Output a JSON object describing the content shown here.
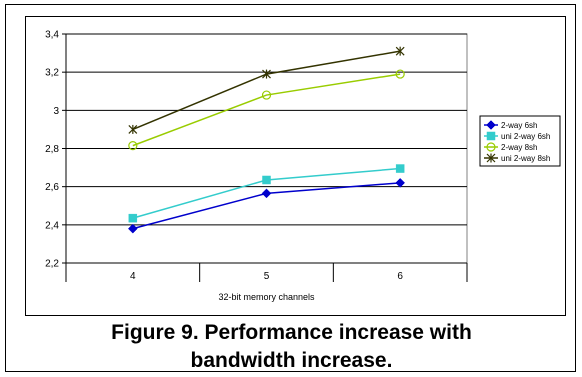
{
  "chart_data": {
    "type": "line",
    "categories": [
      "4",
      "5",
      "6"
    ],
    "xlabel": "32-bit memory channels",
    "ylabel": "",
    "ylim": [
      2.2,
      3.4
    ],
    "yticks": [
      2.2,
      2.4,
      2.6,
      2.8,
      3.0,
      3.2,
      3.4
    ],
    "ytick_labels": [
      "2,2",
      "2,4",
      "2,6",
      "2,8",
      "3",
      "3,2",
      "3,4"
    ],
    "grid": "horizontal",
    "legend_position": "right",
    "series": [
      {
        "name": "2-way 6sh",
        "values": [
          2.38,
          2.565,
          2.62
        ],
        "color": "#0000cc",
        "marker": "diamond"
      },
      {
        "name": "uni 2-way 6sh",
        "values": [
          2.435,
          2.635,
          2.695
        ],
        "color": "#33cccc",
        "marker": "square"
      },
      {
        "name": "2-way 8sh",
        "values": [
          2.815,
          3.08,
          3.19
        ],
        "color": "#99cc00",
        "marker": "circle"
      },
      {
        "name": "uni 2-way 8sh",
        "values": [
          2.9,
          3.19,
          3.31
        ],
        "color": "#333300",
        "marker": "asterisk"
      }
    ]
  },
  "caption": {
    "line1": "Figure 9. Performance increase with",
    "line2": "bandwidth increase."
  }
}
